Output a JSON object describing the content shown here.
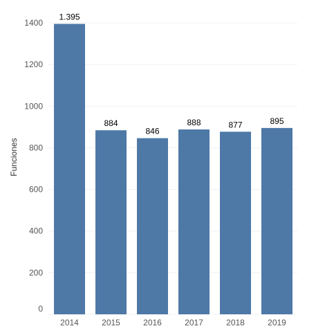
{
  "chart_data": {
    "type": "bar",
    "categories": [
      "2014",
      "2015",
      "2016",
      "2017",
      "2018",
      "2019"
    ],
    "values": [
      1395,
      884,
      846,
      888,
      877,
      895
    ],
    "data_labels": [
      "1.395",
      "884",
      "846",
      "888",
      "877",
      "895"
    ],
    "title": "",
    "xlabel": "",
    "ylabel": "Funciones",
    "ylim": [
      0,
      1400
    ],
    "yticks": [
      0,
      200,
      400,
      600,
      800,
      1000,
      1200,
      1400
    ],
    "grid": true,
    "bar_color": "#4e79a7",
    "gridline_color": "#f0f0f0"
  }
}
